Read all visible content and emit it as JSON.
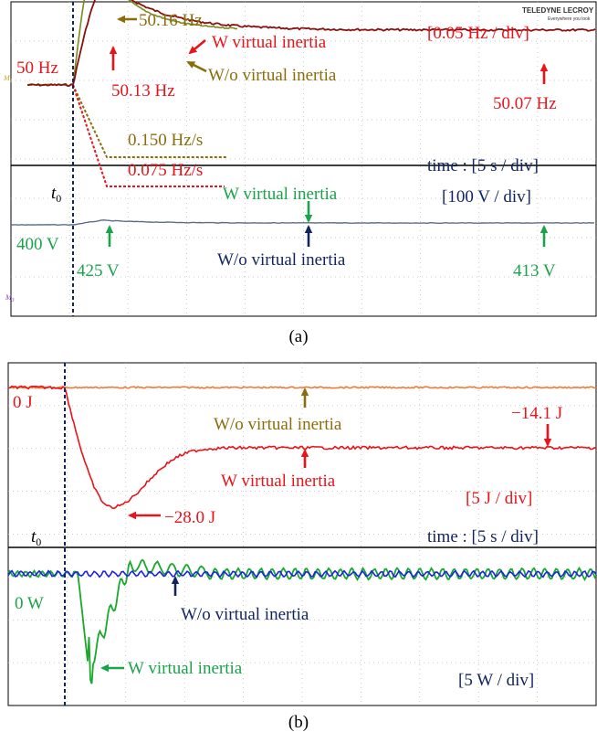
{
  "colors": {
    "red": "#e8141a",
    "olive": "#8a6d0a",
    "green": "#1aa34a",
    "navy": "#12245f",
    "blue": "#1a2ee0",
    "orange": "#f07a3a",
    "grid": "#b9b9b9",
    "olive_trace": "#7a8a1c",
    "darkred_trace": "#8a1010",
    "slate": "#5a6e8a",
    "green_trace": "#19a82a",
    "blue_trace": "#1a22e6"
  },
  "panel_a": {
    "caption": "(a)",
    "scale_top": "[0.05 Hz / div]",
    "scale_bottom": "[100 V / div]",
    "time_scale": "time : [5 s / div]",
    "t0_label": "t",
    "t0_sub": "0",
    "freq_annotations": {
      "base": "50 Hz",
      "peak_wo": "50.16 Hz",
      "peak_w": "50.13 Hz",
      "final": "50.07 Hz",
      "w_inertia": "W virtual inertia",
      "wo_inertia": "W/o virtual inertia",
      "rocof_wo": "0.150 Hz/s",
      "rocof_w": "0.075 Hz/s"
    },
    "volt_annotations": {
      "base": "400 V",
      "peak": "425 V",
      "final": "413 V",
      "w_inertia": "W virtual inertia",
      "wo_inertia": "W/o virtual inertia"
    },
    "scope_brand": "TELEDYNE LECROY",
    "scope_sub": "Everywhere you look",
    "channel_tag": "M",
    "channel_tag_sub_top": "1",
    "channel_tag_sub_bottom": "3"
  },
  "panel_b": {
    "caption": "(b)",
    "scale_top": "[5 J / div]",
    "scale_bottom": "[5 W / div]",
    "time_scale": "time : [5 s / div]",
    "t0_label": "t",
    "t0_sub": "0",
    "energy_annotations": {
      "base": "0 J",
      "wo_inertia": "W/o virtual inertia",
      "w_inertia": "W virtual inertia",
      "final": "−14.1 J",
      "min": "−28.0 J"
    },
    "power_annotations": {
      "base": "0 W",
      "wo_inertia": "W/o virtual inertia",
      "w_inertia": "W virtual inertia"
    }
  },
  "chart_data": [
    {
      "type": "line",
      "title": "",
      "xlabel": "time : [5 s / div]",
      "ylabel": "[0.05 Hz / div]",
      "series": [
        {
          "name": "W virtual inertia",
          "x": [
            0,
            2.5,
            5,
            10,
            20,
            30,
            40
          ],
          "y": [
            50.0,
            50.13,
            50.13,
            50.09,
            50.07,
            50.07,
            50.07
          ]
        },
        {
          "name": "W/o virtual inertia",
          "x": [
            0,
            2,
            4,
            10,
            20,
            30,
            40
          ],
          "y": [
            50.0,
            50.16,
            50.15,
            50.08,
            50.07,
            50.07,
            50.07
          ]
        }
      ],
      "annotations": [
        "50 Hz",
        "50.16 Hz",
        "50.13 Hz",
        "50.07 Hz",
        "0.150 Hz/s",
        "0.075 Hz/s"
      ]
    },
    {
      "type": "line",
      "title": "",
      "xlabel": "time : [5 s / div]",
      "ylabel": "[100 V / div]",
      "series": [
        {
          "name": "W virtual inertia",
          "x": [
            0,
            2.5,
            10,
            20,
            40
          ],
          "y": [
            400,
            425,
            415,
            413,
            413
          ]
        }
      ],
      "annotations": [
        "400 V",
        "425 V",
        "413 V"
      ]
    },
    {
      "type": "line",
      "title": "",
      "xlabel": "time : [5 s / div]",
      "ylabel": "[5 J / div]",
      "series": [
        {
          "name": "W/o virtual inertia",
          "x": [
            0,
            40
          ],
          "y": [
            0,
            0
          ]
        },
        {
          "name": "W virtual inertia",
          "x": [
            0,
            5,
            10,
            20,
            30,
            40
          ],
          "y": [
            0,
            -28.0,
            -20,
            -14.1,
            -14.1,
            -14.1
          ]
        }
      ],
      "annotations": [
        "0 J",
        "−14.1 J",
        "−28.0 J"
      ]
    },
    {
      "type": "line",
      "title": "",
      "xlabel": "time : [5 s / div]",
      "ylabel": "[5 W / div]",
      "series": [
        {
          "name": "W/o virtual inertia",
          "x": [
            0,
            40
          ],
          "y": [
            0,
            0
          ]
        },
        {
          "name": "W virtual inertia",
          "x": [
            0,
            1.5,
            2,
            3,
            4.5,
            6,
            8,
            12,
            20,
            40
          ],
          "y": [
            0,
            -3,
            -22,
            -20,
            -8,
            2,
            3,
            1,
            0,
            0
          ]
        }
      ],
      "annotations": [
        "0 W"
      ]
    }
  ]
}
